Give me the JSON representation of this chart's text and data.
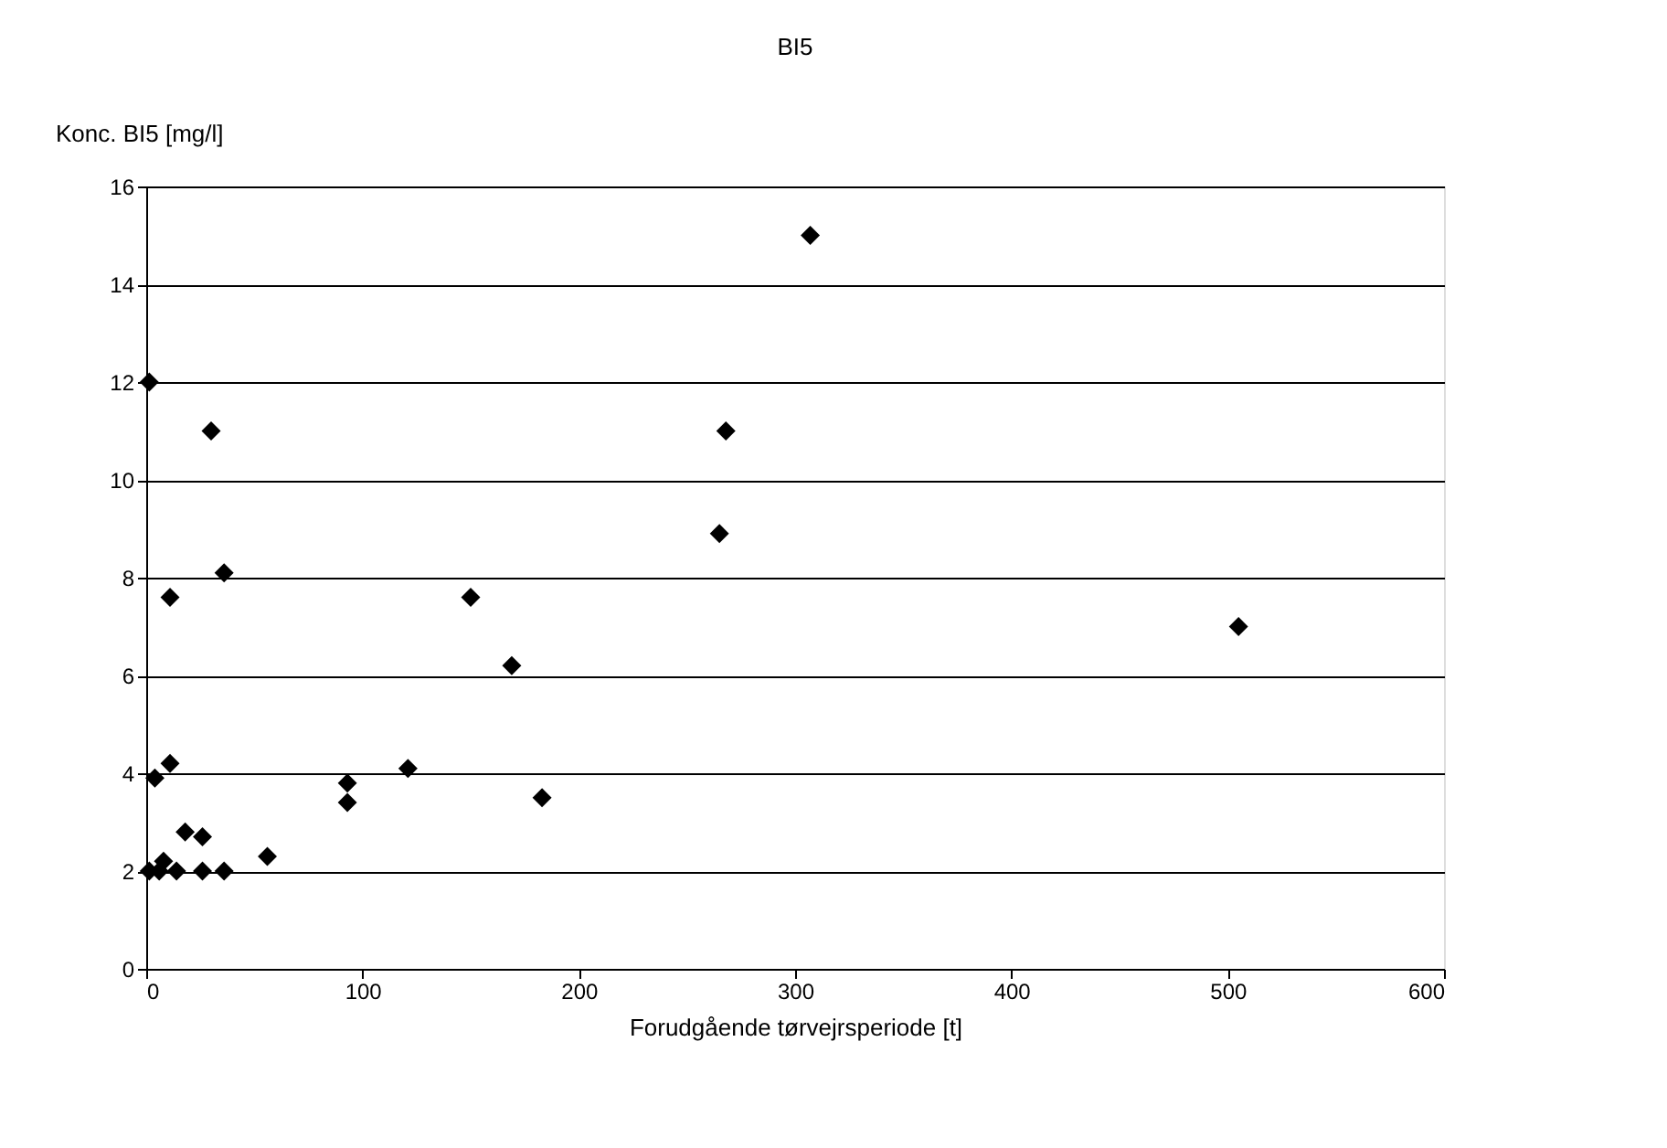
{
  "chart_data": {
    "type": "scatter",
    "title": "BI5",
    "xlabel": "Forudgående tørvejrsperiode [t]",
    "ylabel": "Konc. BI5 [mg/l]",
    "x": [
      1.4,
      30,
      11,
      36,
      4,
      11,
      18,
      26,
      56,
      1.4,
      6,
      8,
      14,
      26,
      36,
      93,
      93,
      121,
      150,
      169,
      183,
      265,
      268,
      307,
      505
    ],
    "series": [
      {
        "color": "#000000",
        "values": [
          12,
          11.0,
          7.6,
          8.1,
          3.9,
          4.2,
          2.8,
          2.7,
          2.3,
          2.0,
          2.0,
          2.2,
          2.0,
          2.0,
          2.0,
          3.8,
          3.4,
          4.1,
          7.6,
          6.2,
          3.5,
          8.9,
          11.0,
          15.0,
          7.0
        ]
      }
    ],
    "xlim": [
      0,
      600
    ],
    "xticks": [
      0,
      100,
      200,
      300,
      400,
      500,
      600
    ],
    "ylim": [
      0,
      16
    ],
    "yticks": [
      0,
      2,
      4,
      6,
      8,
      10,
      12,
      14,
      16
    ],
    "grid": "y",
    "marker": "diamond"
  }
}
